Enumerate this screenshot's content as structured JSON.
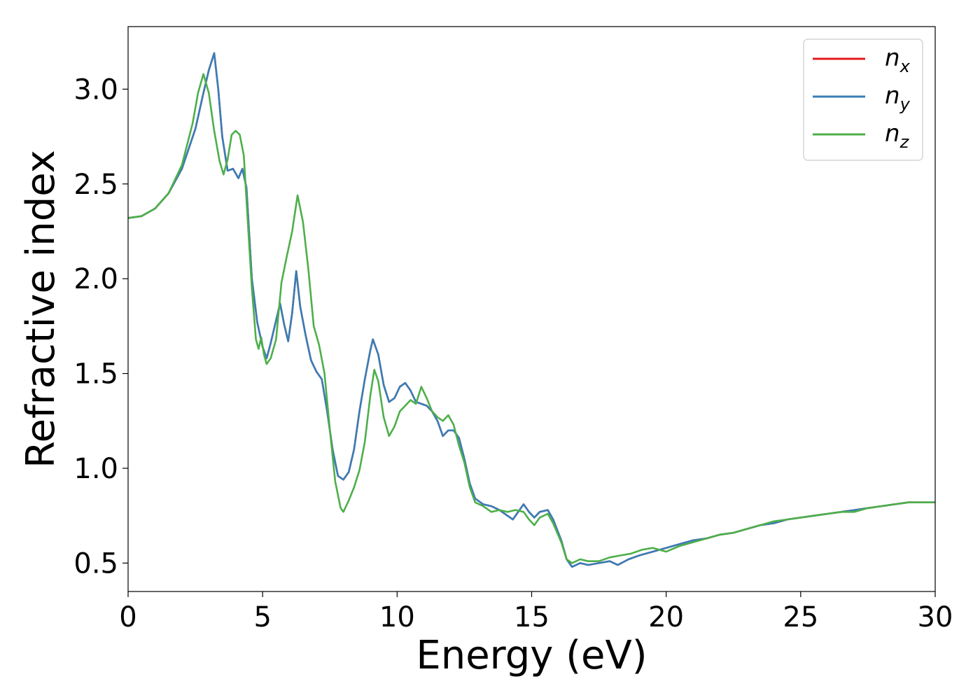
{
  "chart_data": {
    "type": "line",
    "title": "",
    "xlabel": "Energy (eV)",
    "ylabel": "Refractive index",
    "xlim": [
      0,
      30
    ],
    "ylim": [
      0.35,
      3.33
    ],
    "xticks": [
      0,
      5,
      10,
      15,
      20,
      25,
      30
    ],
    "xtick_labels": [
      "0",
      "5",
      "10",
      "15",
      "20",
      "25",
      "30"
    ],
    "yticks": [
      0.5,
      1.0,
      1.5,
      2.0,
      2.5,
      3.0
    ],
    "ytick_labels": [
      "0.5",
      "1.0",
      "1.5",
      "2.0",
      "2.5",
      "3.0"
    ],
    "grid": false,
    "legend_position": "top-right",
    "series": [
      {
        "name_base": "n",
        "name_sub": "x",
        "color": "#e41a1c",
        "points": [
          [
            0,
            2.32
          ],
          [
            0.5,
            2.33
          ],
          [
            1,
            2.37
          ],
          [
            1.5,
            2.45
          ],
          [
            2,
            2.58
          ],
          [
            2.5,
            2.79
          ],
          [
            2.8,
            2.98
          ],
          [
            3.0,
            3.1
          ],
          [
            3.2,
            3.19
          ],
          [
            3.35,
            3.0
          ],
          [
            3.5,
            2.75
          ],
          [
            3.7,
            2.57
          ],
          [
            3.9,
            2.58
          ],
          [
            4.1,
            2.53
          ],
          [
            4.25,
            2.58
          ],
          [
            4.4,
            2.48
          ],
          [
            4.6,
            2.0
          ],
          [
            4.8,
            1.77
          ],
          [
            5.0,
            1.64
          ],
          [
            5.15,
            1.58
          ],
          [
            5.3,
            1.66
          ],
          [
            5.5,
            1.78
          ],
          [
            5.65,
            1.87
          ],
          [
            5.8,
            1.76
          ],
          [
            5.95,
            1.67
          ],
          [
            6.1,
            1.82
          ],
          [
            6.25,
            2.04
          ],
          [
            6.4,
            1.85
          ],
          [
            6.6,
            1.7
          ],
          [
            6.8,
            1.57
          ],
          [
            7.0,
            1.51
          ],
          [
            7.2,
            1.47
          ],
          [
            7.4,
            1.3
          ],
          [
            7.6,
            1.1
          ],
          [
            7.8,
            0.96
          ],
          [
            8.0,
            0.94
          ],
          [
            8.2,
            0.98
          ],
          [
            8.4,
            1.1
          ],
          [
            8.6,
            1.3
          ],
          [
            8.8,
            1.47
          ],
          [
            9.0,
            1.62
          ],
          [
            9.1,
            1.68
          ],
          [
            9.3,
            1.6
          ],
          [
            9.5,
            1.44
          ],
          [
            9.7,
            1.35
          ],
          [
            9.9,
            1.37
          ],
          [
            10.1,
            1.43
          ],
          [
            10.3,
            1.45
          ],
          [
            10.5,
            1.41
          ],
          [
            10.7,
            1.35
          ],
          [
            10.9,
            1.34
          ],
          [
            11.1,
            1.33
          ],
          [
            11.3,
            1.3
          ],
          [
            11.5,
            1.25
          ],
          [
            11.7,
            1.17
          ],
          [
            11.9,
            1.2
          ],
          [
            12.1,
            1.2
          ],
          [
            12.3,
            1.16
          ],
          [
            12.5,
            1.05
          ],
          [
            12.7,
            0.92
          ],
          [
            12.9,
            0.84
          ],
          [
            13.2,
            0.81
          ],
          [
            13.5,
            0.8
          ],
          [
            13.8,
            0.78
          ],
          [
            14.1,
            0.75
          ],
          [
            14.3,
            0.73
          ],
          [
            14.5,
            0.77
          ],
          [
            14.7,
            0.81
          ],
          [
            14.9,
            0.77
          ],
          [
            15.1,
            0.74
          ],
          [
            15.3,
            0.77
          ],
          [
            15.6,
            0.78
          ],
          [
            15.8,
            0.73
          ],
          [
            16.1,
            0.62
          ],
          [
            16.3,
            0.52
          ],
          [
            16.5,
            0.48
          ],
          [
            16.8,
            0.5
          ],
          [
            17.1,
            0.49
          ],
          [
            17.5,
            0.5
          ],
          [
            17.9,
            0.51
          ],
          [
            18.2,
            0.49
          ],
          [
            18.6,
            0.52
          ],
          [
            19.0,
            0.54
          ],
          [
            19.5,
            0.56
          ],
          [
            20,
            0.58
          ],
          [
            20.5,
            0.6
          ],
          [
            21,
            0.62
          ],
          [
            21.5,
            0.63
          ],
          [
            22,
            0.65
          ],
          [
            22.5,
            0.66
          ],
          [
            23,
            0.68
          ],
          [
            23.5,
            0.7
          ],
          [
            24,
            0.71
          ],
          [
            24.5,
            0.73
          ],
          [
            25,
            0.74
          ],
          [
            25.5,
            0.75
          ],
          [
            26,
            0.76
          ],
          [
            26.5,
            0.77
          ],
          [
            27,
            0.78
          ],
          [
            27.5,
            0.79
          ],
          [
            28,
            0.8
          ],
          [
            28.5,
            0.81
          ],
          [
            29,
            0.82
          ],
          [
            29.5,
            0.82
          ],
          [
            30,
            0.82
          ]
        ]
      },
      {
        "name_base": "n",
        "name_sub": "y",
        "color": "#377eb8",
        "points": [
          [
            0,
            2.32
          ],
          [
            0.5,
            2.33
          ],
          [
            1,
            2.37
          ],
          [
            1.5,
            2.45
          ],
          [
            2,
            2.58
          ],
          [
            2.5,
            2.79
          ],
          [
            2.8,
            2.98
          ],
          [
            3.0,
            3.1
          ],
          [
            3.2,
            3.19
          ],
          [
            3.35,
            3.0
          ],
          [
            3.5,
            2.75
          ],
          [
            3.7,
            2.57
          ],
          [
            3.9,
            2.58
          ],
          [
            4.1,
            2.53
          ],
          [
            4.25,
            2.58
          ],
          [
            4.4,
            2.48
          ],
          [
            4.6,
            2.0
          ],
          [
            4.8,
            1.77
          ],
          [
            5.0,
            1.64
          ],
          [
            5.15,
            1.58
          ],
          [
            5.3,
            1.66
          ],
          [
            5.5,
            1.78
          ],
          [
            5.65,
            1.87
          ],
          [
            5.8,
            1.76
          ],
          [
            5.95,
            1.67
          ],
          [
            6.1,
            1.82
          ],
          [
            6.25,
            2.04
          ],
          [
            6.4,
            1.85
          ],
          [
            6.6,
            1.7
          ],
          [
            6.8,
            1.57
          ],
          [
            7.0,
            1.51
          ],
          [
            7.2,
            1.47
          ],
          [
            7.4,
            1.3
          ],
          [
            7.6,
            1.1
          ],
          [
            7.8,
            0.96
          ],
          [
            8.0,
            0.94
          ],
          [
            8.2,
            0.98
          ],
          [
            8.4,
            1.1
          ],
          [
            8.6,
            1.3
          ],
          [
            8.8,
            1.47
          ],
          [
            9.0,
            1.62
          ],
          [
            9.1,
            1.68
          ],
          [
            9.3,
            1.6
          ],
          [
            9.5,
            1.44
          ],
          [
            9.7,
            1.35
          ],
          [
            9.9,
            1.37
          ],
          [
            10.1,
            1.43
          ],
          [
            10.3,
            1.45
          ],
          [
            10.5,
            1.41
          ],
          [
            10.7,
            1.35
          ],
          [
            10.9,
            1.34
          ],
          [
            11.1,
            1.33
          ],
          [
            11.3,
            1.3
          ],
          [
            11.5,
            1.25
          ],
          [
            11.7,
            1.17
          ],
          [
            11.9,
            1.2
          ],
          [
            12.1,
            1.2
          ],
          [
            12.3,
            1.16
          ],
          [
            12.5,
            1.05
          ],
          [
            12.7,
            0.92
          ],
          [
            12.9,
            0.84
          ],
          [
            13.2,
            0.81
          ],
          [
            13.5,
            0.8
          ],
          [
            13.8,
            0.78
          ],
          [
            14.1,
            0.75
          ],
          [
            14.3,
            0.73
          ],
          [
            14.5,
            0.77
          ],
          [
            14.7,
            0.81
          ],
          [
            14.9,
            0.77
          ],
          [
            15.1,
            0.74
          ],
          [
            15.3,
            0.77
          ],
          [
            15.6,
            0.78
          ],
          [
            15.8,
            0.73
          ],
          [
            16.1,
            0.62
          ],
          [
            16.3,
            0.52
          ],
          [
            16.5,
            0.48
          ],
          [
            16.8,
            0.5
          ],
          [
            17.1,
            0.49
          ],
          [
            17.5,
            0.5
          ],
          [
            17.9,
            0.51
          ],
          [
            18.2,
            0.49
          ],
          [
            18.6,
            0.52
          ],
          [
            19.0,
            0.54
          ],
          [
            19.5,
            0.56
          ],
          [
            20,
            0.58
          ],
          [
            20.5,
            0.6
          ],
          [
            21,
            0.62
          ],
          [
            21.5,
            0.63
          ],
          [
            22,
            0.65
          ],
          [
            22.5,
            0.66
          ],
          [
            23,
            0.68
          ],
          [
            23.5,
            0.7
          ],
          [
            24,
            0.71
          ],
          [
            24.5,
            0.73
          ],
          [
            25,
            0.74
          ],
          [
            25.5,
            0.75
          ],
          [
            26,
            0.76
          ],
          [
            26.5,
            0.77
          ],
          [
            27,
            0.78
          ],
          [
            27.5,
            0.79
          ],
          [
            28,
            0.8
          ],
          [
            28.5,
            0.81
          ],
          [
            29,
            0.82
          ],
          [
            29.5,
            0.82
          ],
          [
            30,
            0.82
          ]
        ]
      },
      {
        "name_base": "n",
        "name_sub": "z",
        "color": "#4daf4a",
        "points": [
          [
            0,
            2.32
          ],
          [
            0.5,
            2.33
          ],
          [
            1,
            2.37
          ],
          [
            1.5,
            2.45
          ],
          [
            2,
            2.6
          ],
          [
            2.4,
            2.82
          ],
          [
            2.6,
            2.98
          ],
          [
            2.8,
            3.08
          ],
          [
            3.0,
            2.98
          ],
          [
            3.2,
            2.78
          ],
          [
            3.4,
            2.62
          ],
          [
            3.55,
            2.55
          ],
          [
            3.7,
            2.63
          ],
          [
            3.85,
            2.76
          ],
          [
            4.0,
            2.78
          ],
          [
            4.15,
            2.76
          ],
          [
            4.3,
            2.65
          ],
          [
            4.45,
            2.3
          ],
          [
            4.6,
            1.95
          ],
          [
            4.75,
            1.68
          ],
          [
            4.85,
            1.63
          ],
          [
            4.95,
            1.69
          ],
          [
            5.05,
            1.6
          ],
          [
            5.15,
            1.55
          ],
          [
            5.3,
            1.58
          ],
          [
            5.5,
            1.68
          ],
          [
            5.7,
            1.98
          ],
          [
            5.9,
            2.12
          ],
          [
            6.1,
            2.25
          ],
          [
            6.3,
            2.44
          ],
          [
            6.5,
            2.3
          ],
          [
            6.7,
            2.05
          ],
          [
            6.9,
            1.75
          ],
          [
            7.1,
            1.65
          ],
          [
            7.3,
            1.5
          ],
          [
            7.5,
            1.2
          ],
          [
            7.7,
            0.93
          ],
          [
            7.9,
            0.79
          ],
          [
            8.0,
            0.77
          ],
          [
            8.2,
            0.83
          ],
          [
            8.4,
            0.9
          ],
          [
            8.6,
            0.99
          ],
          [
            8.8,
            1.14
          ],
          [
            9.0,
            1.38
          ],
          [
            9.15,
            1.52
          ],
          [
            9.3,
            1.46
          ],
          [
            9.5,
            1.27
          ],
          [
            9.7,
            1.17
          ],
          [
            9.9,
            1.22
          ],
          [
            10.1,
            1.3
          ],
          [
            10.3,
            1.33
          ],
          [
            10.5,
            1.36
          ],
          [
            10.7,
            1.34
          ],
          [
            10.9,
            1.43
          ],
          [
            11.1,
            1.37
          ],
          [
            11.3,
            1.3
          ],
          [
            11.5,
            1.27
          ],
          [
            11.7,
            1.25
          ],
          [
            11.9,
            1.28
          ],
          [
            12.1,
            1.23
          ],
          [
            12.3,
            1.12
          ],
          [
            12.5,
            1.03
          ],
          [
            12.7,
            0.9
          ],
          [
            12.9,
            0.82
          ],
          [
            13.2,
            0.8
          ],
          [
            13.5,
            0.77
          ],
          [
            13.8,
            0.78
          ],
          [
            14.1,
            0.77
          ],
          [
            14.4,
            0.78
          ],
          [
            14.7,
            0.77
          ],
          [
            14.9,
            0.73
          ],
          [
            15.1,
            0.7
          ],
          [
            15.3,
            0.74
          ],
          [
            15.6,
            0.76
          ],
          [
            15.8,
            0.71
          ],
          [
            16.1,
            0.61
          ],
          [
            16.3,
            0.52
          ],
          [
            16.5,
            0.5
          ],
          [
            16.8,
            0.52
          ],
          [
            17.1,
            0.51
          ],
          [
            17.5,
            0.51
          ],
          [
            17.9,
            0.53
          ],
          [
            18.3,
            0.54
          ],
          [
            18.7,
            0.55
          ],
          [
            19.1,
            0.57
          ],
          [
            19.5,
            0.58
          ],
          [
            20,
            0.56
          ],
          [
            20.5,
            0.59
          ],
          [
            21,
            0.61
          ],
          [
            21.5,
            0.63
          ],
          [
            22,
            0.65
          ],
          [
            22.5,
            0.66
          ],
          [
            23,
            0.68
          ],
          [
            23.5,
            0.7
          ],
          [
            24,
            0.72
          ],
          [
            24.5,
            0.73
          ],
          [
            25,
            0.74
          ],
          [
            25.5,
            0.75
          ],
          [
            26,
            0.76
          ],
          [
            26.5,
            0.77
          ],
          [
            27,
            0.77
          ],
          [
            27.5,
            0.79
          ],
          [
            28,
            0.8
          ],
          [
            28.5,
            0.81
          ],
          [
            29,
            0.82
          ],
          [
            29.5,
            0.82
          ],
          [
            30,
            0.82
          ]
        ]
      }
    ]
  }
}
